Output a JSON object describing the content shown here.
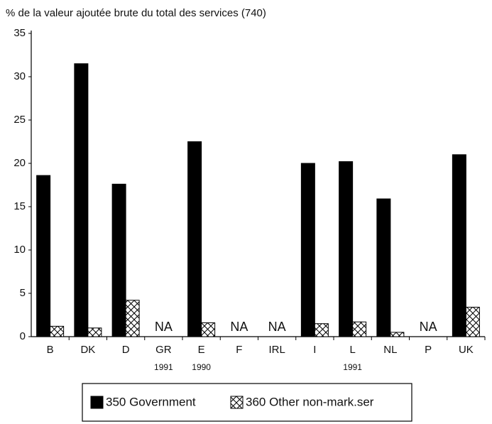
{
  "chart_data": {
    "type": "bar",
    "title": "% de la valeur ajoutée brute du total des services (740)",
    "categories": [
      "B",
      "DK",
      "D",
      "GR",
      "E",
      "F",
      "IRL",
      "I",
      "L",
      "NL",
      "P",
      "UK"
    ],
    "category_notes": [
      null,
      null,
      null,
      "1991",
      "1990",
      null,
      null,
      null,
      "1991",
      null,
      null,
      null
    ],
    "na_label": "NA",
    "series": [
      {
        "name": "350 Government",
        "color": "#000000",
        "hatch": false,
        "values": [
          18.6,
          31.5,
          17.6,
          null,
          22.5,
          null,
          null,
          20.0,
          20.2,
          15.9,
          null,
          21.0
        ]
      },
      {
        "name": "360 Other non-mark.ser",
        "color": "#ffffff",
        "hatch": true,
        "values": [
          1.2,
          1.0,
          4.2,
          null,
          1.6,
          null,
          null,
          1.5,
          1.7,
          0.5,
          null,
          3.4
        ]
      }
    ],
    "ylim": [
      0,
      35
    ],
    "yticks": [
      0,
      5,
      10,
      15,
      20,
      25,
      30,
      35
    ],
    "grid": false
  }
}
